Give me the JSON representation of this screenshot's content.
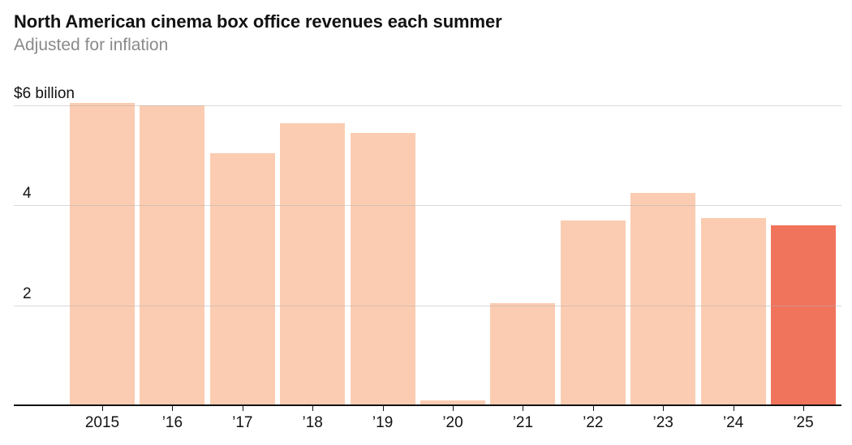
{
  "header": {
    "title": "North American cinema box office revenues each summer",
    "subtitle": "Adjusted for inflation"
  },
  "chart_data": {
    "type": "bar",
    "title": "North American cinema box office revenues each summer",
    "subtitle": "Adjusted for inflation",
    "unit": "billions of US dollars",
    "categories": [
      "2015",
      "’16",
      "’17",
      "’18",
      "’19",
      "’20",
      "’21",
      "’22",
      "’23",
      "’24",
      "’25"
    ],
    "values": [
      6.05,
      6.0,
      5.05,
      5.65,
      5.45,
      0.1,
      2.05,
      3.7,
      4.25,
      3.75,
      3.6
    ],
    "highlight_index": 10,
    "ylim": [
      0,
      6.2
    ],
    "yticks": [
      {
        "value": 6,
        "label": "$6 billion"
      },
      {
        "value": 4,
        "label": "4"
      },
      {
        "value": 2,
        "label": "2"
      }
    ],
    "grid": "horizontal",
    "legend": "none",
    "colors": {
      "bar": "#fbccb1",
      "highlight_bar": "#f0745b",
      "axis": "#121212",
      "gridline": "#e0e0e0",
      "tick_label": "#121212",
      "title": "#121212",
      "subtitle": "#8a8a8a"
    }
  }
}
